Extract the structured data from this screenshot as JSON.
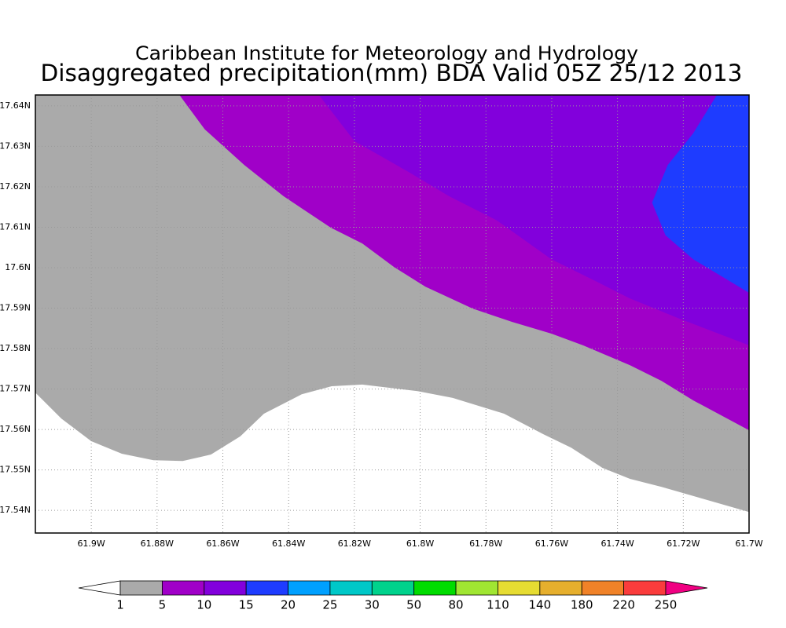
{
  "chart_data": {
    "type": "contour",
    "title": "Caribbean Institute for Meteorology and Hydrology",
    "subtitle": "Disaggregated precipitation(mm) BDA Valid 05Z 25/12 2013",
    "xlim": [
      -61.917,
      -61.7
    ],
    "ylim": [
      17.5344,
      17.6427
    ],
    "xticks": [
      {
        "value": -61.9,
        "label": "61.9W"
      },
      {
        "value": -61.88,
        "label": "61.88W"
      },
      {
        "value": -61.86,
        "label": "61.86W"
      },
      {
        "value": -61.84,
        "label": "61.84W"
      },
      {
        "value": -61.82,
        "label": "61.82W"
      },
      {
        "value": -61.8,
        "label": "61.8W"
      },
      {
        "value": -61.78,
        "label": "61.78W"
      },
      {
        "value": -61.76,
        "label": "61.76W"
      },
      {
        "value": -61.74,
        "label": "61.74W"
      },
      {
        "value": -61.72,
        "label": "61.72W"
      },
      {
        "value": -61.7,
        "label": "61.7W"
      }
    ],
    "yticks": [
      {
        "value": 17.54,
        "label": "17.54N"
      },
      {
        "value": 17.55,
        "label": "17.55N"
      },
      {
        "value": 17.56,
        "label": "17.56N"
      },
      {
        "value": 17.57,
        "label": "17.57N"
      },
      {
        "value": 17.58,
        "label": "17.58N"
      },
      {
        "value": 17.59,
        "label": "17.59N"
      },
      {
        "value": 17.6,
        "label": "17.6N"
      },
      {
        "value": 17.61,
        "label": "17.61N"
      },
      {
        "value": 17.62,
        "label": "17.62N"
      },
      {
        "value": 17.63,
        "label": "17.63N"
      },
      {
        "value": 17.64,
        "label": "17.64N"
      }
    ],
    "grid": true,
    "regions": [
      {
        "color": "#aaaaaa",
        "lon": [
          -61.917,
          -61.9091,
          -61.9,
          -61.8907,
          -61.8811,
          -61.8722,
          -61.8636,
          -61.8547,
          -61.8475,
          -61.836,
          -61.8269,
          -61.8176,
          -61.8008,
          -61.7901,
          -61.7745,
          -61.7625,
          -61.7541,
          -61.7446,
          -61.7362,
          -61.7266,
          -61.7,
          -61.7,
          -61.917
        ],
        "lat": [
          17.5691,
          17.5627,
          17.5571,
          17.554,
          17.5524,
          17.5522,
          17.5538,
          17.5583,
          17.5639,
          17.5687,
          17.5707,
          17.5711,
          17.5695,
          17.5678,
          17.5639,
          17.5588,
          17.5555,
          17.5505,
          17.5478,
          17.5458,
          17.5396,
          17.6427,
          17.6427
        ]
      },
      {
        "color": "#a000c8",
        "lon": [
          -61.8732,
          -61.8655,
          -61.8535,
          -61.8416,
          -61.8272,
          -61.8176,
          -61.808,
          -61.7984,
          -61.7841,
          -61.7721,
          -61.7601,
          -61.7505,
          -61.7362,
          -61.7266,
          -61.717,
          -61.7,
          -61.7
        ],
        "lat": [
          17.6427,
          17.6342,
          17.6254,
          17.6177,
          17.6099,
          17.606,
          17.6002,
          17.5953,
          17.5899,
          17.5866,
          17.5837,
          17.5808,
          17.5759,
          17.572,
          17.5672,
          17.5598,
          17.6427
        ]
      },
      {
        "color": "#8200dc",
        "lon": [
          -61.8308,
          -61.82,
          -61.8032,
          -61.7913,
          -61.7769,
          -61.7601,
          -61.7457,
          -61.7362,
          -61.7218,
          -61.7,
          -61.7
        ],
        "lat": [
          17.6427,
          17.6313,
          17.6235,
          17.6177,
          17.6118,
          17.6021,
          17.5963,
          17.5924,
          17.5876,
          17.5808,
          17.6427
        ]
      },
      {
        "color": "#1e3cff",
        "lon": [
          -61.7098,
          -61.717,
          -61.7247,
          -61.7295,
          -61.7254,
          -61.717,
          -61.7,
          -61.7
        ],
        "lat": [
          17.6427,
          17.6332,
          17.6254,
          17.6161,
          17.608,
          17.6021,
          17.5938,
          17.6427
        ]
      }
    ],
    "colorbar": {
      "levels": [
        1,
        5,
        10,
        15,
        20,
        25,
        30,
        50,
        80,
        110,
        140,
        180,
        220,
        250
      ],
      "colors": [
        "#ffffff",
        "#aaaaaa",
        "#a000c8",
        "#8200dc",
        "#1e3cff",
        "#00a0ff",
        "#00c8c8",
        "#00d28c",
        "#00dc00",
        "#a0e632",
        "#e6dc32",
        "#e6af2d",
        "#f08228",
        "#fa3c3c",
        "#f00082"
      ]
    }
  }
}
